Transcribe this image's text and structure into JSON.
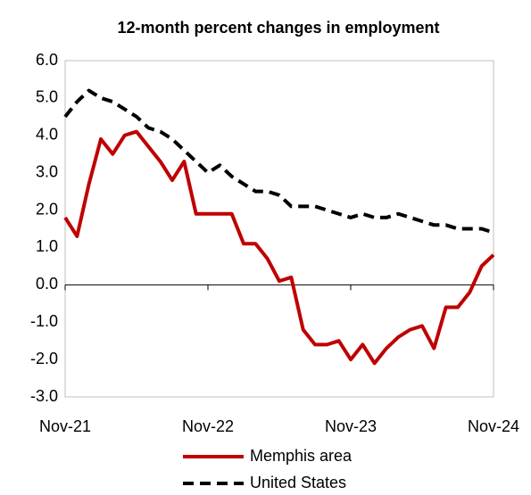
{
  "chart_data": {
    "type": "line",
    "title": "12-month percent changes in employment",
    "categories": [
      "Nov-21",
      null,
      null,
      null,
      null,
      null,
      null,
      null,
      null,
      null,
      null,
      null,
      "Nov-22",
      null,
      null,
      null,
      null,
      null,
      null,
      null,
      null,
      null,
      null,
      null,
      "Nov-23",
      null,
      null,
      null,
      null,
      null,
      null,
      null,
      null,
      null,
      null,
      null,
      "Nov-24"
    ],
    "series": [
      {
        "name": "Memphis area",
        "color": "#c00000",
        "dash": false,
        "values": [
          1.8,
          1.3,
          2.7,
          3.9,
          3.5,
          4.0,
          4.1,
          3.7,
          3.3,
          2.8,
          3.3,
          1.9,
          1.9,
          1.9,
          1.9,
          1.1,
          1.1,
          0.7,
          0.1,
          0.2,
          -1.2,
          -1.6,
          -1.6,
          -1.5,
          -2.0,
          -1.6,
          -2.1,
          -1.7,
          -1.4,
          -1.2,
          -1.1,
          -1.7,
          -0.6,
          -0.6,
          -0.2,
          0.5,
          0.8
        ]
      },
      {
        "name": "United States",
        "color": "#000000",
        "dash": true,
        "values": [
          4.5,
          4.9,
          5.2,
          5.0,
          4.9,
          4.7,
          4.5,
          4.2,
          4.1,
          3.9,
          3.6,
          3.3,
          3.0,
          3.2,
          2.9,
          2.7,
          2.5,
          2.5,
          2.4,
          2.1,
          2.1,
          2.1,
          2.0,
          1.9,
          1.8,
          1.9,
          1.8,
          1.8,
          1.9,
          1.8,
          1.7,
          1.6,
          1.6,
          1.5,
          1.5,
          1.5,
          1.4
        ]
      }
    ],
    "ylim": [
      -3,
      6
    ],
    "yticks": [
      {
        "value": 6,
        "label": "6.0"
      },
      {
        "value": 5,
        "label": "5.0"
      },
      {
        "value": 4,
        "label": "4.0"
      },
      {
        "value": 3,
        "label": "3.0"
      },
      {
        "value": 2,
        "label": "2.0"
      },
      {
        "value": 1,
        "label": "1.0"
      },
      {
        "value": 0,
        "label": "0.0"
      },
      {
        "value": -1,
        "label": "-1.0"
      },
      {
        "value": -2,
        "label": "-2.0"
      },
      {
        "value": -3,
        "label": "-3.0"
      }
    ],
    "grid": false,
    "legend": "bottom"
  }
}
